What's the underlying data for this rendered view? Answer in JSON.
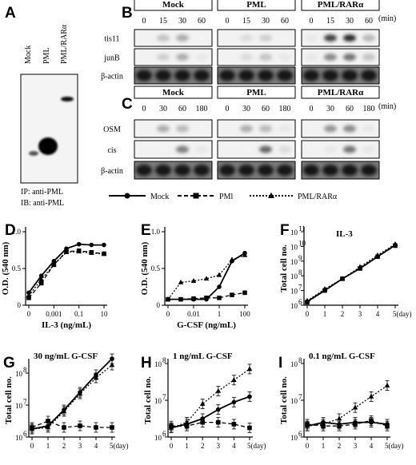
{
  "panels": {
    "A": {
      "letter": "A",
      "lanes": [
        "Mock",
        "PML",
        "PML/RARα"
      ],
      "ip": "IP: anti-PML",
      "ib": "IB: anti-PML"
    },
    "B": {
      "letter": "B",
      "groups": [
        "Mock",
        "PML",
        "PML/RARα"
      ],
      "times": [
        "0",
        "15",
        "30",
        "60"
      ],
      "unit": "(min)",
      "rows": [
        "tis11",
        "junB",
        "β-actin"
      ]
    },
    "C": {
      "letter": "C",
      "groups": [
        "Mock",
        "PML",
        "PML/RARα"
      ],
      "times": [
        "0",
        "30",
        "60",
        "180"
      ],
      "unit": "(min)",
      "rows": [
        "OSM",
        "cis",
        "β-actin"
      ]
    }
  },
  "legend": {
    "items": [
      {
        "label": "Mock",
        "style": "solid",
        "marker": "circle"
      },
      {
        "label": "PMl",
        "style": "dashed",
        "marker": "square"
      },
      {
        "label": "PML/RARα",
        "style": "dotted",
        "marker": "triangle"
      }
    ]
  },
  "chart_data": [
    {
      "id": "D",
      "type": "line",
      "title": "",
      "xlabel": "IL-3 (ng/mL)",
      "ylabel": "O.D. (540 nm)",
      "x_ticks": [
        "0",
        "0.001",
        "0.1",
        "10"
      ],
      "y_ticks": [
        "0",
        "0.5",
        "1.0"
      ],
      "ylim": [
        0,
        1.0
      ],
      "series": [
        {
          "name": "Mock",
          "x": [
            0,
            1,
            2,
            3,
            4,
            5,
            6
          ],
          "y": [
            0.17,
            0.4,
            0.6,
            0.77,
            0.83,
            0.82,
            0.82
          ]
        },
        {
          "name": "PMl",
          "x": [
            0,
            1,
            2,
            3,
            4,
            5,
            6
          ],
          "y": [
            0.1,
            0.3,
            0.55,
            0.73,
            0.74,
            0.72,
            0.7
          ]
        },
        {
          "name": "PML/RARα",
          "x": [
            0,
            1,
            2,
            3,
            4,
            5,
            6
          ],
          "y": [
            0.13,
            0.35,
            0.55,
            0.72,
            0.73,
            0.71,
            0.7
          ]
        }
      ]
    },
    {
      "id": "E",
      "type": "line",
      "title": "",
      "xlabel": "G-CSF (ng/mL)",
      "ylabel": "O.D. (540 nm)",
      "x_ticks": [
        "0",
        "0.01",
        "1",
        "100"
      ],
      "y_ticks": [
        "0",
        "0.5",
        "1.0"
      ],
      "ylim": [
        0,
        1.0
      ],
      "series": [
        {
          "name": "Mock",
          "x": [
            0,
            1,
            2,
            3,
            4,
            5,
            6
          ],
          "y": [
            0.08,
            0.08,
            0.08,
            0.08,
            0.25,
            0.6,
            0.71
          ]
        },
        {
          "name": "PMl",
          "x": [
            0,
            1,
            2,
            3,
            4,
            5,
            6
          ],
          "y": [
            0.08,
            0.08,
            0.09,
            0.1,
            0.1,
            0.14,
            0.17
          ]
        },
        {
          "name": "PML/RARα",
          "x": [
            0,
            1,
            2,
            3,
            4,
            5,
            6
          ],
          "y": [
            0.08,
            0.31,
            0.33,
            0.36,
            0.41,
            0.62,
            0.68
          ]
        }
      ]
    },
    {
      "id": "F",
      "type": "line",
      "title": "IL-3",
      "xlabel": "",
      "ylabel": "Total cell no.",
      "x_ticks": [
        "0",
        "1",
        "2",
        "3",
        "4",
        "5(day)"
      ],
      "y_ticks": [
        {
          "base": "10",
          "exp": "6"
        },
        {
          "base": "10",
          "exp": "7"
        },
        {
          "base": "10",
          "exp": "8"
        },
        {
          "base": "10",
          "exp": "9"
        },
        {
          "base": "10",
          "exp": "10"
        },
        {
          "base": "10",
          "exp": "11"
        }
      ],
      "ylim": [
        6,
        11
      ],
      "yscale": "log",
      "series": [
        {
          "name": "Mock",
          "x": [
            0,
            1,
            2,
            3,
            4,
            5
          ],
          "y": [
            6.25,
            7.0,
            7.8,
            8.5,
            9.3,
            10.1
          ]
        },
        {
          "name": "PMl",
          "x": [
            0,
            1,
            2,
            3,
            4,
            5
          ],
          "y": [
            6.2,
            7.0,
            7.8,
            8.5,
            9.3,
            10.05
          ]
        },
        {
          "name": "PML/RARα",
          "x": [
            0,
            1,
            2,
            3,
            4,
            5
          ],
          "y": [
            6.3,
            7.1,
            7.8,
            8.6,
            9.4,
            10.15
          ]
        }
      ]
    },
    {
      "id": "G",
      "type": "line",
      "title": "30 ng/mL G-CSF",
      "xlabel": "",
      "ylabel": "Total cell no.",
      "x_ticks": [
        "0",
        "1",
        "2",
        "3",
        "4",
        "5(day)"
      ],
      "y_ticks": [
        {
          "base": "10",
          "exp": "6"
        },
        {
          "base": "10",
          "exp": "7"
        },
        {
          "base": "10",
          "exp": "8"
        }
      ],
      "ylim": [
        6,
        8.3
      ],
      "yscale": "log",
      "series": [
        {
          "name": "Mock",
          "x": [
            0,
            1,
            2,
            3,
            4,
            5
          ],
          "y": [
            6.25,
            6.35,
            6.85,
            7.4,
            7.95,
            8.45
          ]
        },
        {
          "name": "PMl",
          "x": [
            0,
            1,
            2,
            3,
            4,
            5
          ],
          "y": [
            6.3,
            6.5,
            6.3,
            6.35,
            6.3,
            6.3
          ]
        },
        {
          "name": "PML/RARα",
          "x": [
            0,
            1,
            2,
            3,
            4,
            5
          ],
          "y": [
            6.25,
            6.3,
            6.8,
            7.35,
            7.85,
            8.25
          ]
        }
      ]
    },
    {
      "id": "H",
      "type": "line",
      "title": "1 ng/mL G-CSF",
      "xlabel": "",
      "ylabel": "Total cell no.",
      "x_ticks": [
        "0",
        "1",
        "2",
        "3",
        "4",
        "5(day)"
      ],
      "y_ticks": [
        {
          "base": "10",
          "exp": "6"
        },
        {
          "base": "10",
          "exp": "7"
        },
        {
          "base": "10",
          "exp": "8"
        }
      ],
      "ylim": [
        6,
        8
      ],
      "yscale": "log",
      "series": [
        {
          "name": "Mock",
          "x": [
            0,
            1,
            2,
            3,
            4,
            5
          ],
          "y": [
            6.25,
            6.35,
            6.5,
            6.75,
            6.95,
            7.1
          ]
        },
        {
          "name": "PMl",
          "x": [
            0,
            1,
            2,
            3,
            4,
            5
          ],
          "y": [
            6.3,
            6.3,
            6.4,
            6.4,
            6.35,
            6.25
          ]
        },
        {
          "name": "PML/RARα",
          "x": [
            0,
            1,
            2,
            3,
            4,
            5
          ],
          "y": [
            6.25,
            6.4,
            6.9,
            7.25,
            7.55,
            7.85
          ]
        }
      ]
    },
    {
      "id": "I",
      "type": "line",
      "title": "0.1 ng/mL G-CSF",
      "xlabel": "",
      "ylabel": "Total cell no.",
      "x_ticks": [
        "0",
        "1",
        "2",
        "3",
        "4",
        "5(day)"
      ],
      "y_ticks": [
        {
          "base": "10",
          "exp": "6"
        },
        {
          "base": "10",
          "exp": "7"
        },
        {
          "base": "10",
          "exp": "8"
        }
      ],
      "ylim": [
        6,
        8
      ],
      "yscale": "log",
      "series": [
        {
          "name": "Mock",
          "x": [
            0,
            1,
            2,
            3,
            4,
            5
          ],
          "y": [
            6.3,
            6.4,
            6.35,
            6.4,
            6.4,
            6.35
          ]
        },
        {
          "name": "PMl",
          "x": [
            0,
            1,
            2,
            3,
            4,
            5
          ],
          "y": [
            6.35,
            6.3,
            6.3,
            6.35,
            6.45,
            6.3
          ]
        },
        {
          "name": "PML/RARα",
          "x": [
            0,
            1,
            2,
            3,
            4,
            5
          ],
          "y": [
            6.3,
            6.35,
            6.5,
            6.8,
            7.1,
            7.4
          ]
        }
      ]
    }
  ]
}
